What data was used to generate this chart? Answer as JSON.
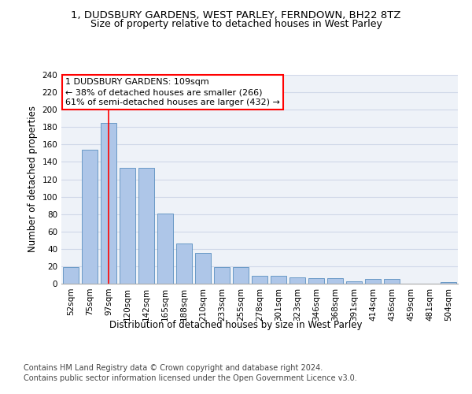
{
  "title1": "1, DUDSBURY GARDENS, WEST PARLEY, FERNDOWN, BH22 8TZ",
  "title2": "Size of property relative to detached houses in West Parley",
  "xlabel": "Distribution of detached houses by size in West Parley",
  "ylabel": "Number of detached properties",
  "footer1": "Contains HM Land Registry data © Crown copyright and database right 2024.",
  "footer2": "Contains public sector information licensed under the Open Government Licence v3.0.",
  "categories": [
    "52sqm",
    "75sqm",
    "97sqm",
    "120sqm",
    "142sqm",
    "165sqm",
    "188sqm",
    "210sqm",
    "233sqm",
    "255sqm",
    "278sqm",
    "301sqm",
    "323sqm",
    "346sqm",
    "368sqm",
    "391sqm",
    "414sqm",
    "436sqm",
    "459sqm",
    "481sqm",
    "504sqm"
  ],
  "values": [
    19,
    154,
    185,
    133,
    133,
    81,
    46,
    35,
    19,
    19,
    9,
    9,
    7,
    6,
    6,
    3,
    5,
    5,
    0,
    0,
    2
  ],
  "bar_color": "#aec6e8",
  "bar_edge_color": "#5a8fc0",
  "vline_x": 2,
  "vline_color": "red",
  "annotation_text": "1 DUDSBURY GARDENS: 109sqm\n← 38% of detached houses are smaller (266)\n61% of semi-detached houses are larger (432) →",
  "annotation_box_color": "white",
  "annotation_box_edge_color": "red",
  "ylim": [
    0,
    240
  ],
  "yticks": [
    0,
    20,
    40,
    60,
    80,
    100,
    120,
    140,
    160,
    180,
    200,
    220,
    240
  ],
  "grid_color": "#d0d8e8",
  "bg_color": "#eef2f8",
  "title1_fontsize": 9.5,
  "title2_fontsize": 9,
  "axis_label_fontsize": 8.5,
  "tick_fontsize": 7.5,
  "footer_fontsize": 7,
  "annotation_fontsize": 8
}
